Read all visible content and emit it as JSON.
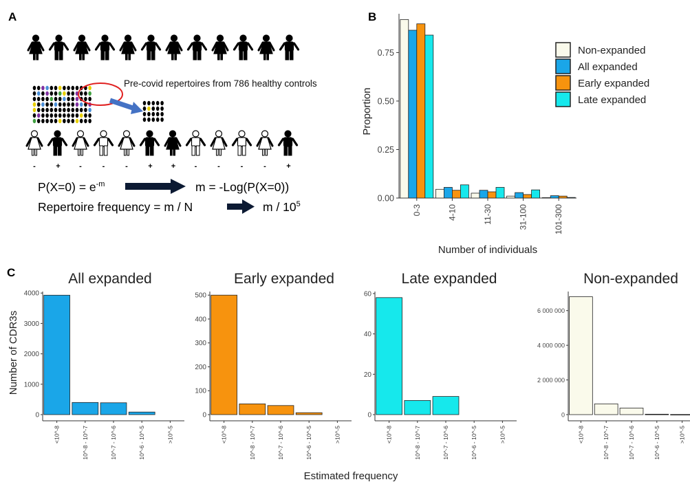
{
  "panel_labels": {
    "a": "A",
    "b": "B",
    "c": "C"
  },
  "panel_a": {
    "annotation": "Pre-covid repertoires from 786 healthy controls",
    "signs": [
      "-",
      "+",
      "-",
      "-",
      "-",
      "+",
      "+",
      "-",
      "-",
      "-",
      "-",
      "+"
    ],
    "eq1_left": "P(X=0) = e",
    "eq1_sup": "-m",
    "eq1_right": "m = -Log(P(X=0))",
    "eq2_left": "Repertoire frequency = m / N",
    "eq2_right": "m / 10",
    "eq2_sup": "5",
    "colors": {
      "figure": "#000000",
      "arrow_dark": "#0c1a33",
      "arrow_blue": "#4472c4",
      "circle": "#e02020",
      "dot_yellow": "#e8d000",
      "dot_purple": "#8030a0",
      "dot_green": "#40a040"
    }
  },
  "chart_data": [
    {
      "type": "bar",
      "panel": "B",
      "categories": [
        "0-3",
        "4-10",
        "11-30",
        "31-100",
        "101-300"
      ],
      "series": [
        {
          "name": "Non-expanded",
          "color": "#fafaeb",
          "values": [
            0.92,
            0.045,
            0.025,
            0.01,
            0.002
          ]
        },
        {
          "name": "All expanded",
          "color": "#1aa6e8",
          "values": [
            0.865,
            0.055,
            0.04,
            0.028,
            0.012
          ]
        },
        {
          "name": "Early expanded",
          "color": "#f7930e",
          "values": [
            0.898,
            0.04,
            0.032,
            0.018,
            0.01
          ]
        },
        {
          "name": "Late expanded",
          "color": "#16e8ec",
          "values": [
            0.84,
            0.068,
            0.055,
            0.042,
            0.003
          ]
        }
      ],
      "xlabel": "Number of individuals",
      "ylabel": "Proportion",
      "yticks": [
        "0.00",
        "0.25",
        "0.50",
        "0.75"
      ],
      "ylim": [
        0,
        0.95
      ],
      "legend_position": "right",
      "grid": false
    },
    {
      "type": "bar",
      "panel": "C",
      "title": "All expanded",
      "color": "#1aa6e8",
      "categories": [
        "<10^-8",
        "10^-8 - 10^-7",
        "10^-7 - 10^-6",
        "10^-6 - 10^-5",
        ">10^-5"
      ],
      "values": [
        3930,
        400,
        390,
        85,
        0
      ],
      "yticks": [
        0,
        1000,
        2000,
        3000,
        4000
      ],
      "ytick_labels": [
        "0",
        "1000",
        "2000",
        "3000",
        "4000"
      ],
      "ylim": [
        0,
        4050
      ],
      "ylabel": "Number of CDR3s"
    },
    {
      "type": "bar",
      "panel": "C",
      "title": "Early expanded",
      "color": "#f7930e",
      "categories": [
        "<10^-8",
        "10^-8 - 10^-7",
        "10^-7 - 10^-6",
        "10^-6 - 10^-5",
        ">10^-5"
      ],
      "values": [
        500,
        45,
        38,
        8,
        0
      ],
      "yticks": [
        0,
        100,
        200,
        300,
        400,
        500
      ],
      "ytick_labels": [
        "0",
        "100",
        "200",
        "300",
        "400",
        "500"
      ],
      "ylim": [
        0,
        515
      ]
    },
    {
      "type": "bar",
      "panel": "C",
      "title": "Late expanded",
      "color": "#16e8ec",
      "categories": [
        "<10^-8",
        "10^-8 - 10^-7",
        "10^-7 - 10^-6",
        "10^-6 - 10^-5",
        ">10^-5"
      ],
      "values": [
        58,
        7,
        9,
        0,
        0
      ],
      "yticks": [
        0,
        20,
        40,
        60
      ],
      "ytick_labels": [
        "0",
        "20",
        "40",
        "60"
      ],
      "ylim": [
        0,
        61
      ]
    },
    {
      "type": "bar",
      "panel": "C",
      "title": "Non-expanded",
      "color": "#fafaeb",
      "categories": [
        "<10^-8",
        "10^-8 - 10^-7",
        "10^-7 - 10^-6",
        "10^-6 - 10^-5",
        ">10^-5"
      ],
      "values": [
        6800000,
        620000,
        380000,
        25000,
        8000
      ],
      "yticks": [
        0,
        2000000,
        4000000,
        6000000
      ],
      "ytick_labels": [
        "0",
        "2 000 000",
        "4 000 000",
        "6 000 000"
      ],
      "ylim": [
        0,
        7100000
      ]
    }
  ],
  "panel_c_xlabel": "Estimated frequency"
}
